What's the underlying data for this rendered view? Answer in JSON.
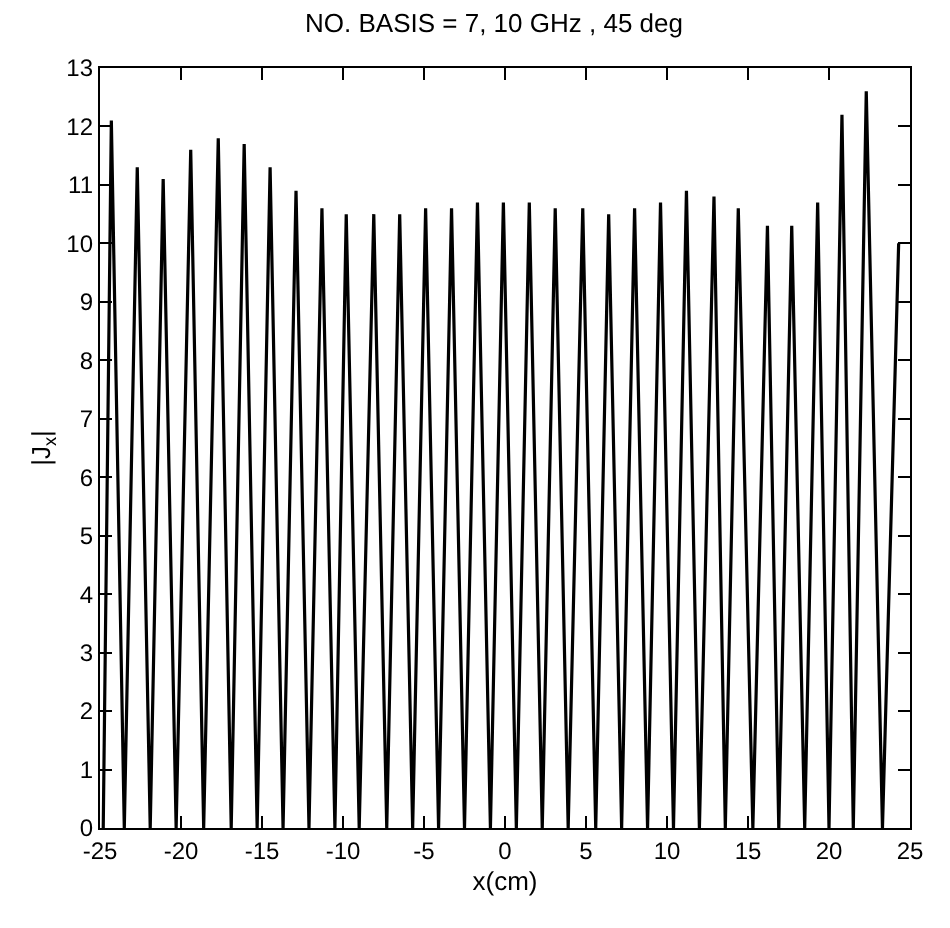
{
  "chart_data": {
    "type": "line",
    "title": "NO. BASIS = 7, 10 GHz , 45 deg",
    "xlabel": "x(cm)",
    "ylabel": "|J$_{x}$|",
    "xlim": [
      -25,
      25
    ],
    "ylim": [
      0,
      13
    ],
    "xticks": [
      -25,
      -20,
      -15,
      -10,
      -5,
      0,
      5,
      10,
      15,
      20,
      25
    ],
    "yticks": [
      0,
      1,
      2,
      3,
      4,
      5,
      6,
      7,
      8,
      9,
      10,
      11,
      12,
      13
    ],
    "marker": "none",
    "line_style": "solid",
    "series": [
      {
        "color": "#000000",
        "x": [
          -24.8,
          -24.3,
          -23.5,
          -22.7,
          -21.9,
          -21.1,
          -20.3,
          -19.4,
          -18.6,
          -17.7,
          -16.9,
          -16.1,
          -15.3,
          -14.5,
          -13.7,
          -12.9,
          -12.1,
          -11.3,
          -10.5,
          -9.8,
          -9.0,
          -8.1,
          -7.3,
          -6.5,
          -5.7,
          -4.9,
          -4.1,
          -3.3,
          -2.5,
          -1.7,
          -0.9,
          -0.1,
          0.7,
          1.5,
          2.3,
          3.1,
          3.9,
          4.8,
          5.6,
          6.4,
          7.2,
          8.0,
          8.8,
          9.6,
          10.4,
          11.2,
          12.0,
          12.9,
          13.6,
          14.4,
          15.3,
          16.2,
          16.9,
          17.7,
          18.5,
          19.3,
          20.0,
          20.8,
          21.5,
          22.3,
          23.3,
          24.3
        ],
        "values": [
          0,
          12.1,
          0,
          11.3,
          0,
          11.1,
          0,
          11.6,
          0,
          11.8,
          0,
          11.7,
          0,
          11.3,
          0,
          10.9,
          0,
          10.6,
          0,
          10.5,
          0,
          10.5,
          0,
          10.5,
          0,
          10.6,
          0,
          10.6,
          0,
          10.7,
          0,
          10.7,
          0,
          10.7,
          0,
          10.6,
          0,
          10.6,
          0,
          10.5,
          0,
          10.6,
          0,
          10.7,
          0,
          10.9,
          0,
          10.8,
          0,
          10.6,
          0,
          10.3,
          0,
          10.3,
          0,
          10.7,
          0,
          12.2,
          0,
          12.6,
          0,
          10.0
        ]
      }
    ]
  }
}
